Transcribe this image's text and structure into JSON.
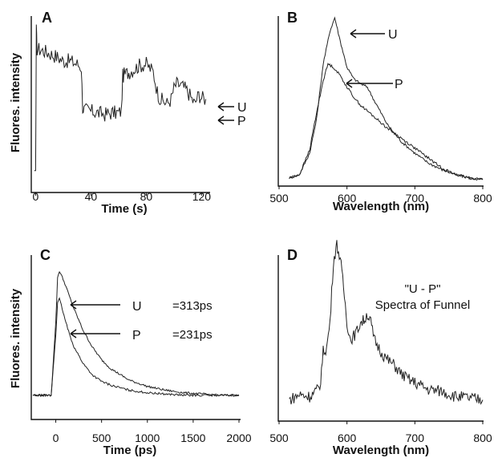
{
  "chart_data": [
    {
      "panel": "A",
      "type": "line",
      "title": "",
      "xlabel": "Time (s)",
      "ylabel": "Fluores. intensity",
      "xlim": [
        -2,
        125
      ],
      "xticks": [
        0,
        40,
        80,
        120
      ],
      "yticks": [],
      "annotations": [
        "U",
        "P"
      ],
      "series": [
        {
          "x": [
            -1,
            0,
            0.5,
            1,
            5,
            10,
            15,
            20,
            25,
            30,
            33,
            34,
            35,
            40,
            45,
            50,
            55,
            60,
            62,
            63,
            64,
            70,
            75,
            80,
            85,
            88,
            90,
            92,
            95,
            98,
            100,
            102,
            105,
            108,
            110,
            113,
            115,
            118,
            120,
            123
          ],
          "y": [
            0.08,
            0.08,
            1.0,
            0.88,
            0.87,
            0.85,
            0.83,
            0.8,
            0.8,
            0.78,
            0.76,
            0.5,
            0.48,
            0.47,
            0.46,
            0.45,
            0.46,
            0.46,
            0.47,
            0.7,
            0.71,
            0.74,
            0.77,
            0.78,
            0.73,
            0.6,
            0.55,
            0.54,
            0.52,
            0.55,
            0.62,
            0.65,
            0.64,
            0.62,
            0.6,
            0.55,
            0.52,
            0.58,
            0.56,
            0.55
          ]
        }
      ]
    },
    {
      "panel": "B",
      "type": "line",
      "title": "",
      "xlabel": "Wavelength (nm)",
      "ylabel": "",
      "xlim": [
        500,
        800
      ],
      "xticks": [
        500,
        600,
        700,
        800
      ],
      "annotations": [
        "U",
        "P"
      ],
      "series": [
        {
          "x": [
            515,
            530,
            545,
            555,
            565,
            575,
            582,
            590,
            600,
            610,
            620,
            630,
            640,
            660,
            680,
            700,
            720,
            740,
            760,
            780,
            800
          ],
          "y": [
            0.03,
            0.05,
            0.18,
            0.38,
            0.72,
            0.92,
            1.0,
            0.86,
            0.7,
            0.63,
            0.6,
            0.58,
            0.5,
            0.35,
            0.25,
            0.18,
            0.12,
            0.08,
            0.05,
            0.03,
            0.02
          ]
        },
        {
          "x": [
            515,
            530,
            545,
            555,
            565,
            572,
            580,
            590,
            600,
            610,
            620,
            640,
            660,
            680,
            700,
            720,
            740,
            760,
            780,
            800
          ],
          "y": [
            0.03,
            0.05,
            0.2,
            0.42,
            0.62,
            0.72,
            0.7,
            0.65,
            0.58,
            0.52,
            0.47,
            0.4,
            0.33,
            0.27,
            0.21,
            0.15,
            0.09,
            0.05,
            0.03,
            0.02
          ]
        }
      ]
    },
    {
      "panel": "C",
      "type": "line",
      "title": "",
      "xlabel": "Time (ps)",
      "ylabel": "Fluores. intensity",
      "xlim": [
        -250,
        2000
      ],
      "xticks": [
        0,
        500,
        1000,
        1500,
        2000
      ],
      "annotations": [
        "U",
        "=313ps",
        "P",
        "=231ps"
      ],
      "series": [
        {
          "x": [
            -250,
            -50,
            0,
            20,
            40,
            60,
            100,
            150,
            200,
            300,
            400,
            500,
            600,
            800,
            1000,
            1200,
            1400,
            1600,
            1800,
            2000
          ],
          "y": [
            0.02,
            0.02,
            0.6,
            0.95,
            1.0,
            0.97,
            0.9,
            0.8,
            0.7,
            0.53,
            0.4,
            0.3,
            0.23,
            0.14,
            0.09,
            0.06,
            0.04,
            0.03,
            0.02,
            0.02
          ]
        },
        {
          "x": [
            -250,
            -50,
            0,
            20,
            40,
            60,
            100,
            150,
            200,
            300,
            400,
            500,
            600,
            800,
            1000,
            1200,
            1400,
            1600,
            1800,
            2000
          ],
          "y": [
            0.02,
            0.02,
            0.5,
            0.75,
            0.78,
            0.73,
            0.62,
            0.5,
            0.4,
            0.27,
            0.18,
            0.13,
            0.1,
            0.06,
            0.04,
            0.03,
            0.02,
            0.02,
            0.02,
            0.02
          ]
        }
      ]
    },
    {
      "panel": "D",
      "type": "line",
      "title": "",
      "xlabel": "Wavelength (nm)",
      "ylabel": "",
      "xlim": [
        500,
        800
      ],
      "xticks": [
        500,
        600,
        700,
        800
      ],
      "annotations": [
        "\"U - P\"",
        "Spectra of Funnel"
      ],
      "series": [
        {
          "x": [
            515,
            530,
            545,
            560,
            565,
            570,
            575,
            580,
            585,
            590,
            595,
            600,
            605,
            610,
            615,
            620,
            625,
            630,
            635,
            640,
            650,
            660,
            670,
            680,
            690,
            700,
            720,
            740,
            760,
            780,
            800
          ],
          "y": [
            0.1,
            0.13,
            0.12,
            0.17,
            0.38,
            0.4,
            0.55,
            0.9,
            1.0,
            0.92,
            0.75,
            0.55,
            0.45,
            0.47,
            0.5,
            0.55,
            0.56,
            0.6,
            0.55,
            0.45,
            0.38,
            0.33,
            0.3,
            0.25,
            0.22,
            0.2,
            0.16,
            0.15,
            0.12,
            0.11,
            0.1
          ]
        }
      ]
    }
  ]
}
